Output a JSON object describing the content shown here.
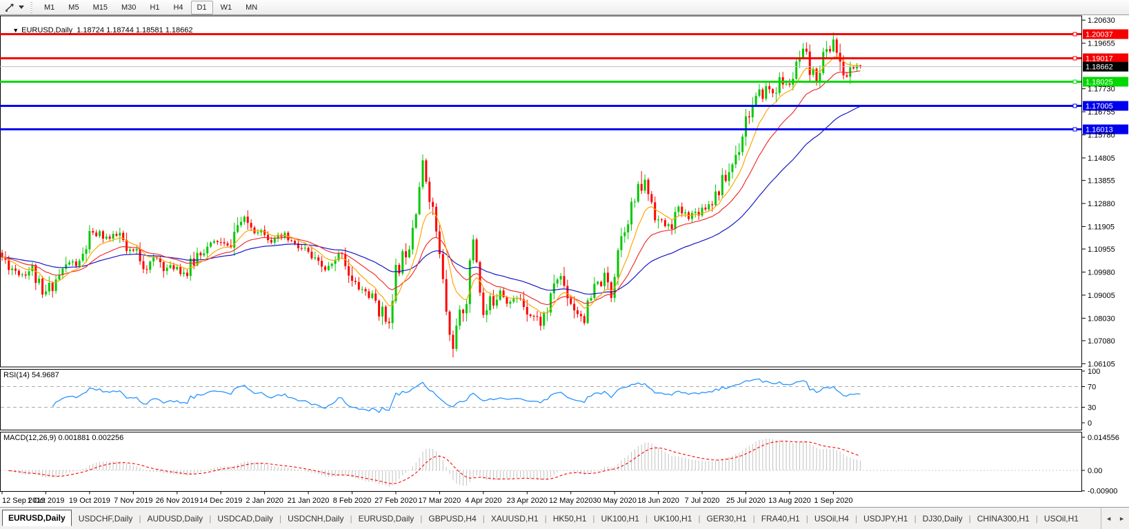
{
  "toolbar": {
    "timeframes": [
      "M1",
      "M5",
      "M15",
      "M30",
      "H1",
      "H4",
      "D1",
      "W1",
      "MN"
    ],
    "active_timeframe": "D1"
  },
  "chart": {
    "title_marker": "▼",
    "symbol": "EURUSD,Daily",
    "ohlc": "1.18724 1.18744 1.18581 1.18662"
  },
  "chart_data": {
    "type": "candlestick",
    "symbol": "EURUSD",
    "timeframe": "Daily",
    "num_candles": 256,
    "candles_per_tick": 13,
    "x_tick_labels": [
      "12 Sep 2019",
      "1 Oct 2019",
      "19 Oct 2019",
      "7 Nov 2019",
      "26 Nov 2019",
      "14 Dec 2019",
      "2 Jan 2020",
      "21 Jan 2020",
      "8 Feb 2020",
      "27 Feb 2020",
      "17 Mar 2020",
      "4 Apr 2020",
      "23 Apr 2020",
      "12 May 2020",
      "30 May 2020",
      "18 Jun 2020",
      "7 Jul 2020",
      "25 Jul 2020",
      "13 Aug 2020",
      "1 Sep 2020"
    ],
    "price_axis": {
      "range": [
        1.0597,
        1.2081
      ],
      "ticks": [
        "1.20630",
        "1.19655",
        "1.17730",
        "1.16755",
        "1.15780",
        "1.14805",
        "1.13855",
        "1.12880",
        "1.11905",
        "1.10955",
        "1.09980",
        "1.09005",
        "1.08030",
        "1.07080",
        "1.06105"
      ]
    },
    "close_anchors": [
      [
        0,
        1.106
      ],
      [
        3,
        1.1015
      ],
      [
        6,
        1.099
      ],
      [
        9,
        1.1012
      ],
      [
        12,
        1.0892
      ],
      [
        14,
        1.093
      ],
      [
        17,
        1.0985
      ],
      [
        20,
        1.104
      ],
      [
        23,
        1.1025
      ],
      [
        26,
        1.1145
      ],
      [
        29,
        1.1162
      ],
      [
        32,
        1.1138
      ],
      [
        35,
        1.1155
      ],
      [
        37,
        1.1078
      ],
      [
        40,
        1.1088
      ],
      [
        43,
        1.1018
      ],
      [
        46,
        1.1055
      ],
      [
        49,
        1.1012
      ],
      [
        52,
        1.1022
      ],
      [
        55,
        1.0988
      ],
      [
        58,
        1.1075
      ],
      [
        61,
        1.11
      ],
      [
        64,
        1.1128
      ],
      [
        67,
        1.1098
      ],
      [
        70,
        1.1195
      ],
      [
        72,
        1.1222
      ],
      [
        75,
        1.1178
      ],
      [
        78,
        1.1172
      ],
      [
        81,
        1.1128
      ],
      [
        84,
        1.1152
      ],
      [
        87,
        1.1108
      ],
      [
        90,
        1.1088
      ],
      [
        93,
        1.1038
      ],
      [
        96,
        1.1008
      ],
      [
        99,
        1.1032
      ],
      [
        101,
        1.1088
      ],
      [
        104,
        1.0952
      ],
      [
        108,
        1.0915
      ],
      [
        111,
        1.0872
      ],
      [
        114,
        1.0792
      ],
      [
        116,
        1.0852
      ],
      [
        117,
        1.0992
      ],
      [
        119,
        1.1058
      ],
      [
        121,
        1.1132
      ],
      [
        123,
        1.1282
      ],
      [
        125,
        1.1452
      ],
      [
        127,
        1.1332
      ],
      [
        129,
        1.1172
      ],
      [
        131,
        1.0952
      ],
      [
        133,
        1.0722
      ],
      [
        134,
        1.0692
      ],
      [
        136,
        1.0802
      ],
      [
        138,
        1.0892
      ],
      [
        140,
        1.1142
      ],
      [
        141,
        1.1052
      ],
      [
        143,
        1.0808
      ],
      [
        145,
        1.0862
      ],
      [
        148,
        1.0928
      ],
      [
        151,
        1.0872
      ],
      [
        154,
        1.0888
      ],
      [
        157,
        1.0828
      ],
      [
        160,
        1.0782
      ],
      [
        163,
        1.0872
      ],
      [
        164,
        1.0958
      ],
      [
        166,
        1.0978
      ],
      [
        168,
        1.0908
      ],
      [
        170,
        1.0848
      ],
      [
        173,
        1.0802
      ],
      [
        176,
        1.0922
      ],
      [
        179,
        1.0978
      ],
      [
        181,
        1.0908
      ],
      [
        183,
        1.1108
      ],
      [
        186,
        1.1238
      ],
      [
        189,
        1.1332
      ],
      [
        191,
        1.1378
      ],
      [
        193,
        1.1298
      ],
      [
        195,
        1.1212
      ],
      [
        198,
        1.1188
      ],
      [
        201,
        1.1258
      ],
      [
        204,
        1.1232
      ],
      [
        207,
        1.1258
      ],
      [
        210,
        1.1288
      ],
      [
        213,
        1.1348
      ],
      [
        216,
        1.1422
      ],
      [
        219,
        1.1532
      ],
      [
        221,
        1.1652
      ],
      [
        224,
        1.1718
      ],
      [
        227,
        1.1778
      ],
      [
        229,
        1.1758
      ],
      [
        231,
        1.1808
      ],
      [
        233,
        1.1788
      ],
      [
        235,
        1.1818
      ],
      [
        237,
        1.1892
      ],
      [
        238,
        1.1932
      ],
      [
        240,
        1.1848
      ],
      [
        242,
        1.1828
      ],
      [
        244,
        1.1908
      ],
      [
        246,
        1.1948
      ],
      [
        247,
        1.1988
      ],
      [
        249,
        1.1858
      ],
      [
        251,
        1.1825
      ],
      [
        253,
        1.1868
      ],
      [
        255,
        1.18662
      ]
    ],
    "wick_overrides": {
      "125": {
        "high": 1.1495
      },
      "134": {
        "low": 1.0637
      },
      "190": {
        "high": 1.1425
      },
      "238": {
        "high": 1.1966
      },
      "247": {
        "high": 1.2011
      }
    },
    "last_ohlc": {
      "open": 1.18724,
      "high": 1.18744,
      "low": 1.18581,
      "close": 1.18662
    },
    "candle_colors": {
      "up": "#00c800",
      "down": "#ff0000"
    },
    "horizontal_lines": [
      {
        "price": 1.20037,
        "label": "1.20037",
        "color": "#f40000"
      },
      {
        "price": 1.19017,
        "label": "1.19017",
        "color": "#f40000"
      },
      {
        "price": 1.18025,
        "label": "1.18025",
        "color": "#00d800"
      },
      {
        "price": 1.17005,
        "label": "1.17005",
        "color": "#0000f0"
      },
      {
        "price": 1.16013,
        "label": "1.16013",
        "color": "#0000f0"
      }
    ],
    "current_price": {
      "value": 1.18662,
      "label": "1.18662",
      "line_color": "#bdbdbd",
      "box_color": "#000000"
    },
    "moving_averages": [
      {
        "name": "ma-slow",
        "period": 50,
        "color": "#1515c8"
      },
      {
        "name": "ma-medium",
        "period": 21,
        "color": "#f03030"
      },
      {
        "name": "ma-fast",
        "period": 9,
        "color": "#ffa500"
      }
    ],
    "indicators": {
      "rsi": {
        "label": "RSI(14) 54.9687",
        "period": 14,
        "value": 54.9687,
        "levels": [
          70,
          30
        ],
        "axis_labels": [
          "100",
          "70",
          "30",
          "0"
        ],
        "line_color": "#2492ff"
      },
      "macd": {
        "label": "MACD(12,26,9) 0.001881 0.002256",
        "params": [
          12,
          26,
          9
        ],
        "main_value": 0.001881,
        "signal_value": 0.002256,
        "axis_labels": [
          "0.014556",
          "0.00",
          "-0.00900"
        ],
        "axis_values": [
          0.014556,
          0,
          -0.009
        ],
        "histogram_color": "#c0c0c0",
        "signal_color": "#ff0000"
      }
    }
  },
  "bottom_tabs": {
    "items": [
      "EURUSD,Daily",
      "USDCHF,Daily",
      "AUDUSD,Daily",
      "USDCAD,Daily",
      "USDCNH,Daily",
      "EURUSD,Daily",
      "GBPUSD,H4",
      "XAUUSD,H1",
      "HK50,H1",
      "UK100,H1",
      "UK100,H1",
      "GER30,H1",
      "FRA40,H1",
      "USOil,H4",
      "USDJPY,H1",
      "DJ30,Daily",
      "CHINA300,H1",
      "USOil,H1"
    ],
    "active_index": 0,
    "separator": "|",
    "scroll_left": "◄",
    "scroll_right": "►"
  }
}
